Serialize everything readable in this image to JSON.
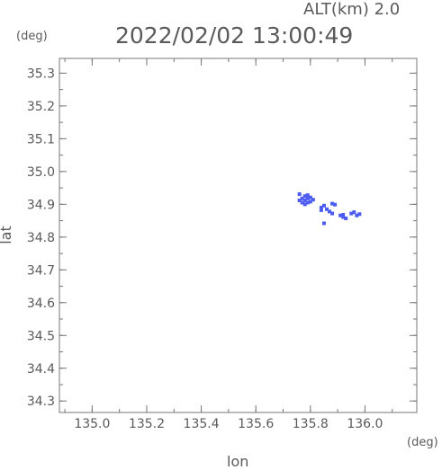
{
  "header": {
    "altitude": "ALT(km)  2.0",
    "timestamp": "2022/02/02 13:00:49",
    "y_unit": "(deg)",
    "x_unit": "(deg)"
  },
  "chart_data": {
    "type": "scatter",
    "xlabel": "lon",
    "ylabel": "lat",
    "xlim": [
      134.88,
      136.19
    ],
    "ylim": [
      34.265,
      35.345
    ],
    "x_ticks": [
      "135.0",
      "135.2",
      "135.4",
      "135.6",
      "135.8",
      "136.0"
    ],
    "y_ticks": [
      "35.3",
      "35.2",
      "35.1",
      "35.0",
      "34.9",
      "34.8",
      "34.7",
      "34.6",
      "34.5",
      "34.4",
      "34.3"
    ],
    "grid": false,
    "point_color": "#4d5cf0",
    "points": [
      {
        "x": 135.76,
        "y": 34.912
      },
      {
        "x": 135.77,
        "y": 34.905
      },
      {
        "x": 135.77,
        "y": 34.918
      },
      {
        "x": 135.78,
        "y": 34.912
      },
      {
        "x": 135.78,
        "y": 34.925
      },
      {
        "x": 135.79,
        "y": 34.918
      },
      {
        "x": 135.79,
        "y": 34.928
      },
      {
        "x": 135.8,
        "y": 34.921
      },
      {
        "x": 135.81,
        "y": 34.914
      },
      {
        "x": 135.79,
        "y": 34.905
      },
      {
        "x": 135.78,
        "y": 34.9
      },
      {
        "x": 135.8,
        "y": 34.908
      },
      {
        "x": 135.76,
        "y": 34.931
      },
      {
        "x": 135.84,
        "y": 34.89
      },
      {
        "x": 135.85,
        "y": 34.896
      },
      {
        "x": 135.84,
        "y": 34.882
      },
      {
        "x": 135.86,
        "y": 34.885
      },
      {
        "x": 135.87,
        "y": 34.878
      },
      {
        "x": 135.88,
        "y": 34.902
      },
      {
        "x": 135.89,
        "y": 34.899
      },
      {
        "x": 135.88,
        "y": 34.872
      },
      {
        "x": 135.91,
        "y": 34.866
      },
      {
        "x": 135.92,
        "y": 34.861
      },
      {
        "x": 135.93,
        "y": 34.857
      },
      {
        "x": 135.92,
        "y": 34.868
      },
      {
        "x": 135.95,
        "y": 34.872
      },
      {
        "x": 135.96,
        "y": 34.876
      },
      {
        "x": 135.97,
        "y": 34.866
      },
      {
        "x": 135.98,
        "y": 34.87
      },
      {
        "x": 135.85,
        "y": 34.842
      }
    ]
  }
}
